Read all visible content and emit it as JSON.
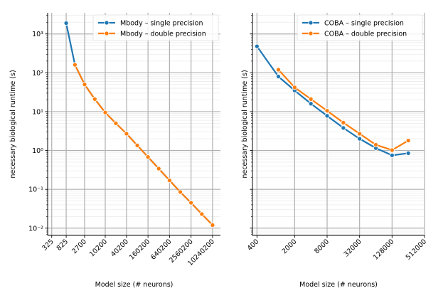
{
  "chart_data": [
    {
      "type": "line",
      "xlabel": "Model size (# neurons)",
      "ylabel": "necessary biological runtime (s)",
      "x_scale": "log",
      "y_scale": "log",
      "xlim": [
        250,
        17000000
      ],
      "ylim": [
        0.0065,
        3500
      ],
      "xticks": [
        325,
        825,
        2700,
        10200,
        40200,
        160200,
        640200,
        2560200,
        10240200
      ],
      "xtick_labels": [
        "325",
        "825",
        "2700",
        "10200",
        "40200",
        "160200",
        "640200",
        "2560200",
        "10240200"
      ],
      "yticks": [
        0.01,
        0.1,
        1,
        10,
        100,
        1000
      ],
      "ytick_labels": [
        "10⁻²",
        "10⁻¹",
        "10⁰",
        "10¹",
        "10²",
        "10³"
      ],
      "grid": true,
      "legend_position": "top-right",
      "series": [
        {
          "name": "Mbody – single precision",
          "color": "#1f77b4",
          "x": [
            825,
            1450,
            2700,
            5200,
            10200,
            20200,
            40200,
            80200,
            160200,
            320200,
            640200,
            1280200,
            2560200,
            5120200,
            10240200
          ],
          "y": [
            1900,
            160,
            50,
            21,
            9.5,
            5.0,
            2.7,
            1.35,
            0.68,
            0.34,
            0.17,
            0.085,
            0.045,
            0.023,
            0.012
          ]
        },
        {
          "name": "Mbody – double precision",
          "color": "#ff7f0e",
          "x": [
            1450,
            2700,
            5200,
            10200,
            20200,
            40200,
            80200,
            160200,
            320200,
            640200,
            1280200,
            2560200,
            5120200,
            10240200
          ],
          "y": [
            160,
            50,
            21,
            9.5,
            5.0,
            2.7,
            1.35,
            0.68,
            0.34,
            0.17,
            0.085,
            0.045,
            0.023,
            0.012
          ]
        }
      ]
    },
    {
      "type": "line",
      "xlabel": "Model size (# neurons)",
      "ylabel": "necessary biological runtime (s)",
      "x_scale": "log",
      "y_scale": "log",
      "xlim": [
        330,
        512000
      ],
      "ylim": [
        0.0065,
        3500
      ],
      "xticks": [
        400,
        2000,
        8000,
        32000,
        128000,
        512000
      ],
      "xtick_labels": [
        "400",
        "2000",
        "8000",
        "32000",
        "128000",
        "512000"
      ],
      "yticks": [
        0.01,
        0.1,
        1,
        10,
        100,
        1000
      ],
      "ytick_labels": [],
      "grid": true,
      "legend_position": "top-right",
      "series": [
        {
          "name": "COBA – single precision",
          "color": "#1f77b4",
          "x": [
            400,
            1000,
            2000,
            4000,
            8000,
            16000,
            32000,
            64000,
            128000,
            256000
          ],
          "y": [
            480,
            80,
            35,
            16,
            7.8,
            3.8,
            2.0,
            1.15,
            0.75,
            0.85
          ]
        },
        {
          "name": "COBA – double precision",
          "color": "#ff7f0e",
          "x": [
            1000,
            2000,
            4000,
            8000,
            16000,
            32000,
            64000,
            128000,
            256000
          ],
          "y": [
            120,
            42,
            21,
            10.5,
            5.2,
            2.7,
            1.4,
            1.02,
            1.8
          ]
        }
      ]
    }
  ]
}
